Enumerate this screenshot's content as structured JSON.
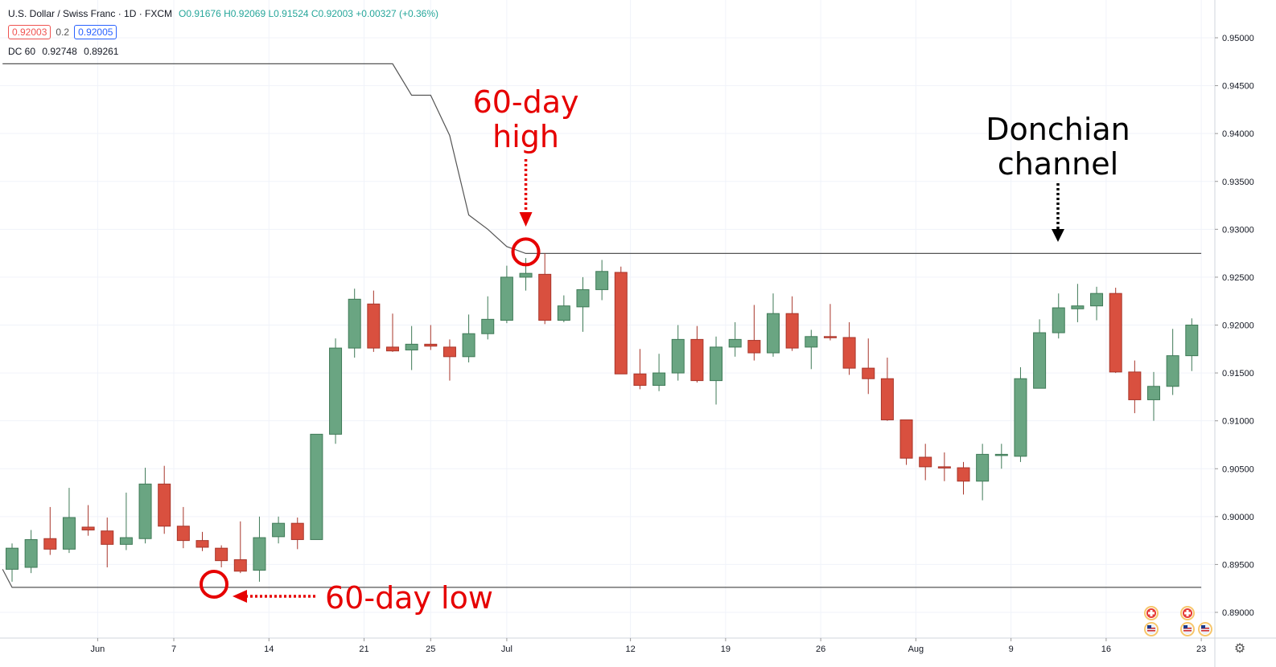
{
  "legend": {
    "title": "U.S. Dollar / Swiss Franc · 1D · FXCM",
    "open": "O0.91676",
    "high": "H0.92069",
    "low": "L0.91524",
    "close": "C0.92003",
    "change": "+0.00327 (+0.36%)"
  },
  "price_boxes": {
    "sell": "0.92003",
    "spread": "0.2",
    "buy": "0.92005"
  },
  "indicator": {
    "name": "DC 60",
    "upper": "0.92748",
    "lower": "0.89261"
  },
  "annotations": {
    "high_line1": "60-day",
    "high_line2": "high",
    "low_text": "60-day low",
    "dc_line1": "Donchian",
    "dc_line2": "channel"
  },
  "colors": {
    "up": "#6aa582",
    "down": "#d9503f",
    "annotation_red": "#e60000",
    "channel_line": "#555555"
  },
  "chart_data": {
    "type": "candlestick",
    "symbol": "USD/CHF",
    "timeframe": "1D",
    "y_axis": {
      "ticks": [
        0.89,
        0.895,
        0.9,
        0.905,
        0.91,
        0.915,
        0.92,
        0.925,
        0.93,
        0.935,
        0.94,
        0.945,
        0.95
      ],
      "tick_labels": [
        "0.89000",
        "0.89500",
        "0.90000",
        "0.90500",
        "0.91000",
        "0.91500",
        "0.92000",
        "0.92500",
        "0.93000",
        "0.93500",
        "0.94000",
        "0.94500",
        "0.95000"
      ],
      "range": [
        0.8855,
        0.9525
      ]
    },
    "x_axis": {
      "tick_labels": [
        "Jun",
        "7",
        "14",
        "21",
        "25",
        "Jul",
        "12",
        "19",
        "26",
        "Aug",
        "9",
        "16",
        "23"
      ],
      "tick_bar_index": [
        4.5,
        8.5,
        13.5,
        18.5,
        22,
        26,
        32.5,
        37.5,
        42.5,
        47.5,
        52.5,
        57.5,
        62.5
      ]
    },
    "candles": [
      {
        "o": 0.8945,
        "h": 0.8972,
        "l": 0.8932,
        "c": 0.8967
      },
      {
        "o": 0.8947,
        "h": 0.8986,
        "l": 0.8941,
        "c": 0.8976
      },
      {
        "o": 0.8977,
        "h": 0.901,
        "l": 0.896,
        "c": 0.8966
      },
      {
        "o": 0.8966,
        "h": 0.903,
        "l": 0.8962,
        "c": 0.8999
      },
      {
        "o": 0.8989,
        "h": 0.9012,
        "l": 0.898,
        "c": 0.8986
      },
      {
        "o": 0.8985,
        "h": 0.8999,
        "l": 0.8947,
        "c": 0.8971
      },
      {
        "o": 0.8971,
        "h": 0.9025,
        "l": 0.8965,
        "c": 0.8978
      },
      {
        "o": 0.8977,
        "h": 0.9051,
        "l": 0.8972,
        "c": 0.9034
      },
      {
        "o": 0.9034,
        "h": 0.9053,
        "l": 0.8982,
        "c": 0.899
      },
      {
        "o": 0.899,
        "h": 0.901,
        "l": 0.8967,
        "c": 0.8975
      },
      {
        "o": 0.8975,
        "h": 0.8984,
        "l": 0.8964,
        "c": 0.8968
      },
      {
        "o": 0.8967,
        "h": 0.897,
        "l": 0.8947,
        "c": 0.8954
      },
      {
        "o": 0.8955,
        "h": 0.8995,
        "l": 0.8941,
        "c": 0.8943
      },
      {
        "o": 0.8944,
        "h": 0.9,
        "l": 0.8932,
        "c": 0.8978
      },
      {
        "o": 0.8979,
        "h": 0.9,
        "l": 0.8972,
        "c": 0.8993
      },
      {
        "o": 0.8993,
        "h": 0.8999,
        "l": 0.8966,
        "c": 0.8976
      },
      {
        "o": 0.8976,
        "h": 0.9086,
        "l": 0.8976,
        "c": 0.9086
      },
      {
        "o": 0.9086,
        "h": 0.9186,
        "l": 0.9076,
        "c": 0.9176
      },
      {
        "o": 0.9176,
        "h": 0.9238,
        "l": 0.9166,
        "c": 0.9227
      },
      {
        "o": 0.9222,
        "h": 0.9236,
        "l": 0.9172,
        "c": 0.9176
      },
      {
        "o": 0.9177,
        "h": 0.9212,
        "l": 0.9172,
        "c": 0.9173
      },
      {
        "o": 0.9174,
        "h": 0.9199,
        "l": 0.9153,
        "c": 0.918
      },
      {
        "o": 0.918,
        "h": 0.92,
        "l": 0.9174,
        "c": 0.9178
      },
      {
        "o": 0.9177,
        "h": 0.9185,
        "l": 0.9142,
        "c": 0.9167
      },
      {
        "o": 0.9167,
        "h": 0.9211,
        "l": 0.9161,
        "c": 0.9191
      },
      {
        "o": 0.9191,
        "h": 0.923,
        "l": 0.9185,
        "c": 0.9206
      },
      {
        "o": 0.9205,
        "h": 0.9262,
        "l": 0.9202,
        "c": 0.925
      },
      {
        "o": 0.925,
        "h": 0.927,
        "l": 0.9236,
        "c": 0.9254
      },
      {
        "o": 0.9253,
        "h": 0.9275,
        "l": 0.9201,
        "c": 0.9205
      },
      {
        "o": 0.9205,
        "h": 0.9231,
        "l": 0.9203,
        "c": 0.922
      },
      {
        "o": 0.9219,
        "h": 0.925,
        "l": 0.9193,
        "c": 0.9237
      },
      {
        "o": 0.9237,
        "h": 0.9268,
        "l": 0.9226,
        "c": 0.9256
      },
      {
        "o": 0.9255,
        "h": 0.9261,
        "l": 0.9149,
        "c": 0.9149
      },
      {
        "o": 0.9149,
        "h": 0.9175,
        "l": 0.9133,
        "c": 0.9137
      },
      {
        "o": 0.9137,
        "h": 0.917,
        "l": 0.9131,
        "c": 0.915
      },
      {
        "o": 0.915,
        "h": 0.92,
        "l": 0.9142,
        "c": 0.9185
      },
      {
        "o": 0.9185,
        "h": 0.9199,
        "l": 0.914,
        "c": 0.9142
      },
      {
        "o": 0.9142,
        "h": 0.9188,
        "l": 0.9117,
        "c": 0.9177
      },
      {
        "o": 0.9177,
        "h": 0.9203,
        "l": 0.9167,
        "c": 0.9185
      },
      {
        "o": 0.9184,
        "h": 0.9221,
        "l": 0.9163,
        "c": 0.9171
      },
      {
        "o": 0.9171,
        "h": 0.9233,
        "l": 0.9167,
        "c": 0.9212
      },
      {
        "o": 0.9212,
        "h": 0.923,
        "l": 0.9173,
        "c": 0.9176
      },
      {
        "o": 0.9177,
        "h": 0.9195,
        "l": 0.9154,
        "c": 0.9188
      },
      {
        "o": 0.9188,
        "h": 0.9222,
        "l": 0.9184,
        "c": 0.9187
      },
      {
        "o": 0.9187,
        "h": 0.9203,
        "l": 0.9148,
        "c": 0.9155
      },
      {
        "o": 0.9155,
        "h": 0.9186,
        "l": 0.9128,
        "c": 0.9144
      },
      {
        "o": 0.9144,
        "h": 0.9166,
        "l": 0.91,
        "c": 0.9101
      },
      {
        "o": 0.9101,
        "h": 0.9101,
        "l": 0.9054,
        "c": 0.9061
      },
      {
        "o": 0.9062,
        "h": 0.9076,
        "l": 0.9038,
        "c": 0.9052
      },
      {
        "o": 0.9052,
        "h": 0.9067,
        "l": 0.9037,
        "c": 0.9051
      },
      {
        "o": 0.9051,
        "h": 0.9057,
        "l": 0.9023,
        "c": 0.9037
      },
      {
        "o": 0.9037,
        "h": 0.9076,
        "l": 0.9017,
        "c": 0.9065
      },
      {
        "o": 0.9064,
        "h": 0.9076,
        "l": 0.905,
        "c": 0.9065
      },
      {
        "o": 0.9063,
        "h": 0.9156,
        "l": 0.9057,
        "c": 0.9144
      },
      {
        "o": 0.9134,
        "h": 0.9206,
        "l": 0.9134,
        "c": 0.9192
      },
      {
        "o": 0.9192,
        "h": 0.9233,
        "l": 0.9186,
        "c": 0.9218
      },
      {
        "o": 0.9217,
        "h": 0.9243,
        "l": 0.9203,
        "c": 0.922
      },
      {
        "o": 0.922,
        "h": 0.924,
        "l": 0.9205,
        "c": 0.9233
      },
      {
        "o": 0.9233,
        "h": 0.9239,
        "l": 0.915,
        "c": 0.9151
      },
      {
        "o": 0.9151,
        "h": 0.9163,
        "l": 0.9108,
        "c": 0.9122
      },
      {
        "o": 0.9122,
        "h": 0.9151,
        "l": 0.91,
        "c": 0.9136
      },
      {
        "o": 0.9136,
        "h": 0.9196,
        "l": 0.9127,
        "c": 0.9168
      },
      {
        "o": 0.9168,
        "h": 0.9207,
        "l": 0.9152,
        "c": 0.92
      }
    ],
    "donchian_upper": [
      {
        "i": -0.5,
        "v": 0.94728
      },
      {
        "i": 20,
        "v": 0.94728
      },
      {
        "i": 21,
        "v": 0.944
      },
      {
        "i": 22,
        "v": 0.944
      },
      {
        "i": 23,
        "v": 0.9398
      },
      {
        "i": 24,
        "v": 0.9315
      },
      {
        "i": 25,
        "v": 0.93
      },
      {
        "i": 26,
        "v": 0.9282
      },
      {
        "i": 27,
        "v": 0.92748
      },
      {
        "i": 62.5,
        "v": 0.92748
      }
    ],
    "donchian_lower": [
      {
        "i": -0.5,
        "v": 0.8945
      },
      {
        "i": 0,
        "v": 0.89261
      },
      {
        "i": 10,
        "v": 0.89261
      },
      {
        "i": 11,
        "v": 0.89261
      },
      {
        "i": 62.5,
        "v": 0.89261
      }
    ]
  }
}
